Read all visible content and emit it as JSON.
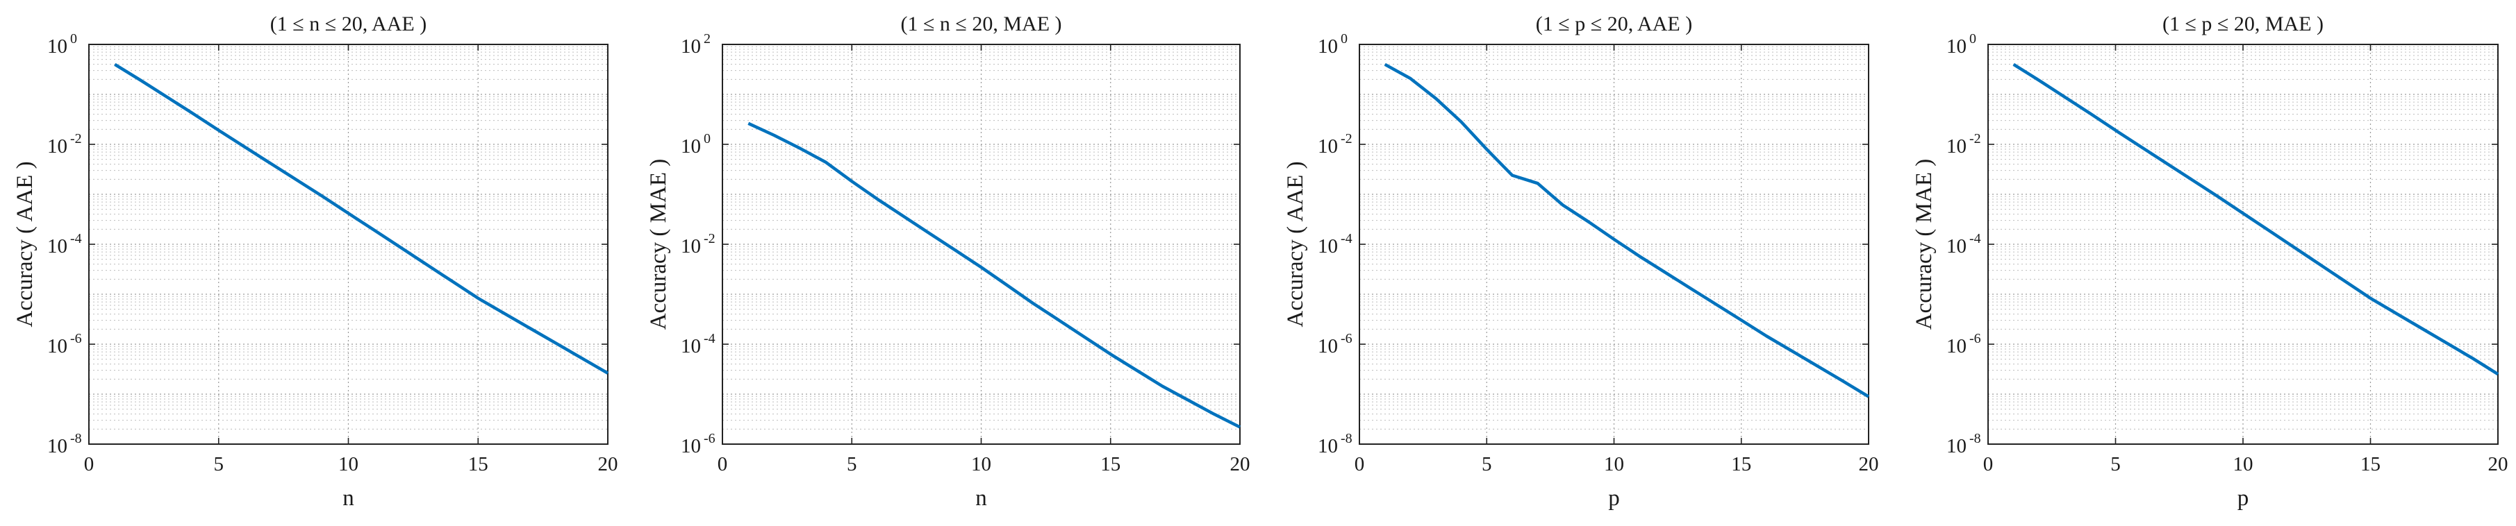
{
  "chart_data": [
    {
      "type": "line",
      "title": "(1 ≤ n ≤ 20, AAE )",
      "xlabel": "n",
      "ylabel": "Accuracy ( AAE )",
      "xlim": [
        0,
        20
      ],
      "xticks": [
        0,
        5,
        10,
        15,
        20
      ],
      "yscale": "log",
      "ylim_exp": [
        -8,
        0
      ],
      "yticks_exp": [
        -8,
        -6,
        -4,
        -2,
        0
      ],
      "grid": true,
      "series": [
        {
          "name": "AAE",
          "x": [
            1,
            2,
            3,
            4,
            5,
            6,
            7,
            8,
            9,
            10,
            11,
            12,
            13,
            14,
            15,
            16,
            17,
            18,
            19,
            20
          ],
          "log10_y": [
            -0.4,
            -0.72,
            -1.05,
            -1.38,
            -1.72,
            -2.05,
            -2.38,
            -2.71,
            -3.04,
            -3.38,
            -3.72,
            -4.06,
            -4.4,
            -4.74,
            -5.08,
            -5.38,
            -5.68,
            -5.98,
            -6.28,
            -6.58
          ]
        }
      ]
    },
    {
      "type": "line",
      "title": "(1 ≤ n ≤ 20, MAE )",
      "xlabel": "n",
      "ylabel": "Accuracy ( MAE )",
      "xlim": [
        0,
        20
      ],
      "xticks": [
        0,
        5,
        10,
        15,
        20
      ],
      "yscale": "log",
      "ylim_exp": [
        -6,
        2
      ],
      "yticks_exp": [
        -6,
        -4,
        -2,
        0,
        2
      ],
      "grid": true,
      "series": [
        {
          "name": "MAE",
          "x": [
            1,
            2,
            3,
            4,
            5,
            6,
            7,
            8,
            9,
            10,
            11,
            12,
            13,
            14,
            15,
            16,
            17,
            18,
            19,
            20
          ],
          "log10_y": [
            0.42,
            0.18,
            -0.08,
            -0.36,
            -0.74,
            -1.1,
            -1.44,
            -1.78,
            -2.12,
            -2.46,
            -2.82,
            -3.18,
            -3.52,
            -3.86,
            -4.2,
            -4.52,
            -4.84,
            -5.12,
            -5.4,
            -5.66
          ]
        }
      ]
    },
    {
      "type": "line",
      "title": "(1 ≤ p ≤ 20, AAE )",
      "xlabel": "p",
      "ylabel": "Accuracy ( AAE )",
      "xlim": [
        0,
        20
      ],
      "xticks": [
        0,
        5,
        10,
        15,
        20
      ],
      "yscale": "log",
      "ylim_exp": [
        -8,
        0
      ],
      "yticks_exp": [
        -8,
        -6,
        -4,
        -2,
        0
      ],
      "grid": true,
      "series": [
        {
          "name": "AAE",
          "x": [
            1,
            2,
            3,
            4,
            5,
            6,
            7,
            8,
            9,
            10,
            11,
            12,
            13,
            14,
            15,
            16,
            17,
            18,
            19,
            20
          ],
          "log10_y": [
            -0.4,
            -0.68,
            -1.08,
            -1.55,
            -2.1,
            -2.62,
            -2.78,
            -3.22,
            -3.55,
            -3.9,
            -4.24,
            -4.56,
            -4.88,
            -5.2,
            -5.52,
            -5.84,
            -6.14,
            -6.44,
            -6.74,
            -7.05
          ]
        }
      ]
    },
    {
      "type": "line",
      "title": "(1 ≤ p ≤ 20, MAE )",
      "xlabel": "p",
      "ylabel": "Accuracy ( MAE )",
      "xlim": [
        0,
        20
      ],
      "xticks": [
        0,
        5,
        10,
        15,
        20
      ],
      "yscale": "log",
      "ylim_exp": [
        -8,
        0
      ],
      "yticks_exp": [
        -8,
        -6,
        -4,
        -2,
        0
      ],
      "grid": true,
      "series": [
        {
          "name": "MAE",
          "x": [
            1,
            2,
            3,
            4,
            5,
            6,
            7,
            8,
            9,
            10,
            11,
            12,
            13,
            14,
            15,
            16,
            17,
            18,
            19,
            20
          ],
          "log10_y": [
            -0.4,
            -0.72,
            -1.05,
            -1.38,
            -1.72,
            -2.05,
            -2.38,
            -2.71,
            -3.04,
            -3.38,
            -3.72,
            -4.06,
            -4.4,
            -4.74,
            -5.08,
            -5.38,
            -5.68,
            -5.98,
            -6.28,
            -6.6
          ]
        }
      ]
    }
  ]
}
